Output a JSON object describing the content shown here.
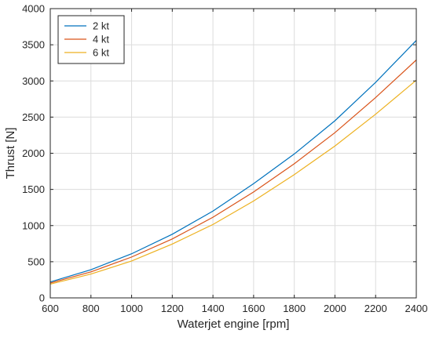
{
  "chart_data": {
    "type": "line",
    "title": "",
    "xlabel": "Waterjet engine [rpm]",
    "ylabel": "Thrust [N]",
    "xlim": [
      600,
      2400
    ],
    "ylim": [
      0,
      4000
    ],
    "xticks": [
      600,
      800,
      1000,
      1200,
      1400,
      1600,
      1800,
      2000,
      2200,
      2400
    ],
    "yticks": [
      0,
      500,
      1000,
      1500,
      2000,
      2500,
      3000,
      3500,
      4000
    ],
    "grid": true,
    "legend_position": "top-left",
    "x": [
      600,
      800,
      1000,
      1200,
      1400,
      1600,
      1800,
      2000,
      2200,
      2400
    ],
    "series": [
      {
        "name": "2 kt",
        "color": "#0072BD",
        "values": [
          220,
          390,
          610,
          880,
          1200,
          1580,
          1990,
          2450,
          2980,
          3560
        ]
      },
      {
        "name": "4 kt",
        "color": "#D95319",
        "values": [
          205,
          360,
          565,
          815,
          1115,
          1465,
          1855,
          2285,
          2770,
          3290
        ]
      },
      {
        "name": "6 kt",
        "color": "#EDB120",
        "values": [
          190,
          330,
          510,
          745,
          1015,
          1340,
          1705,
          2100,
          2540,
          3010
        ]
      }
    ]
  }
}
